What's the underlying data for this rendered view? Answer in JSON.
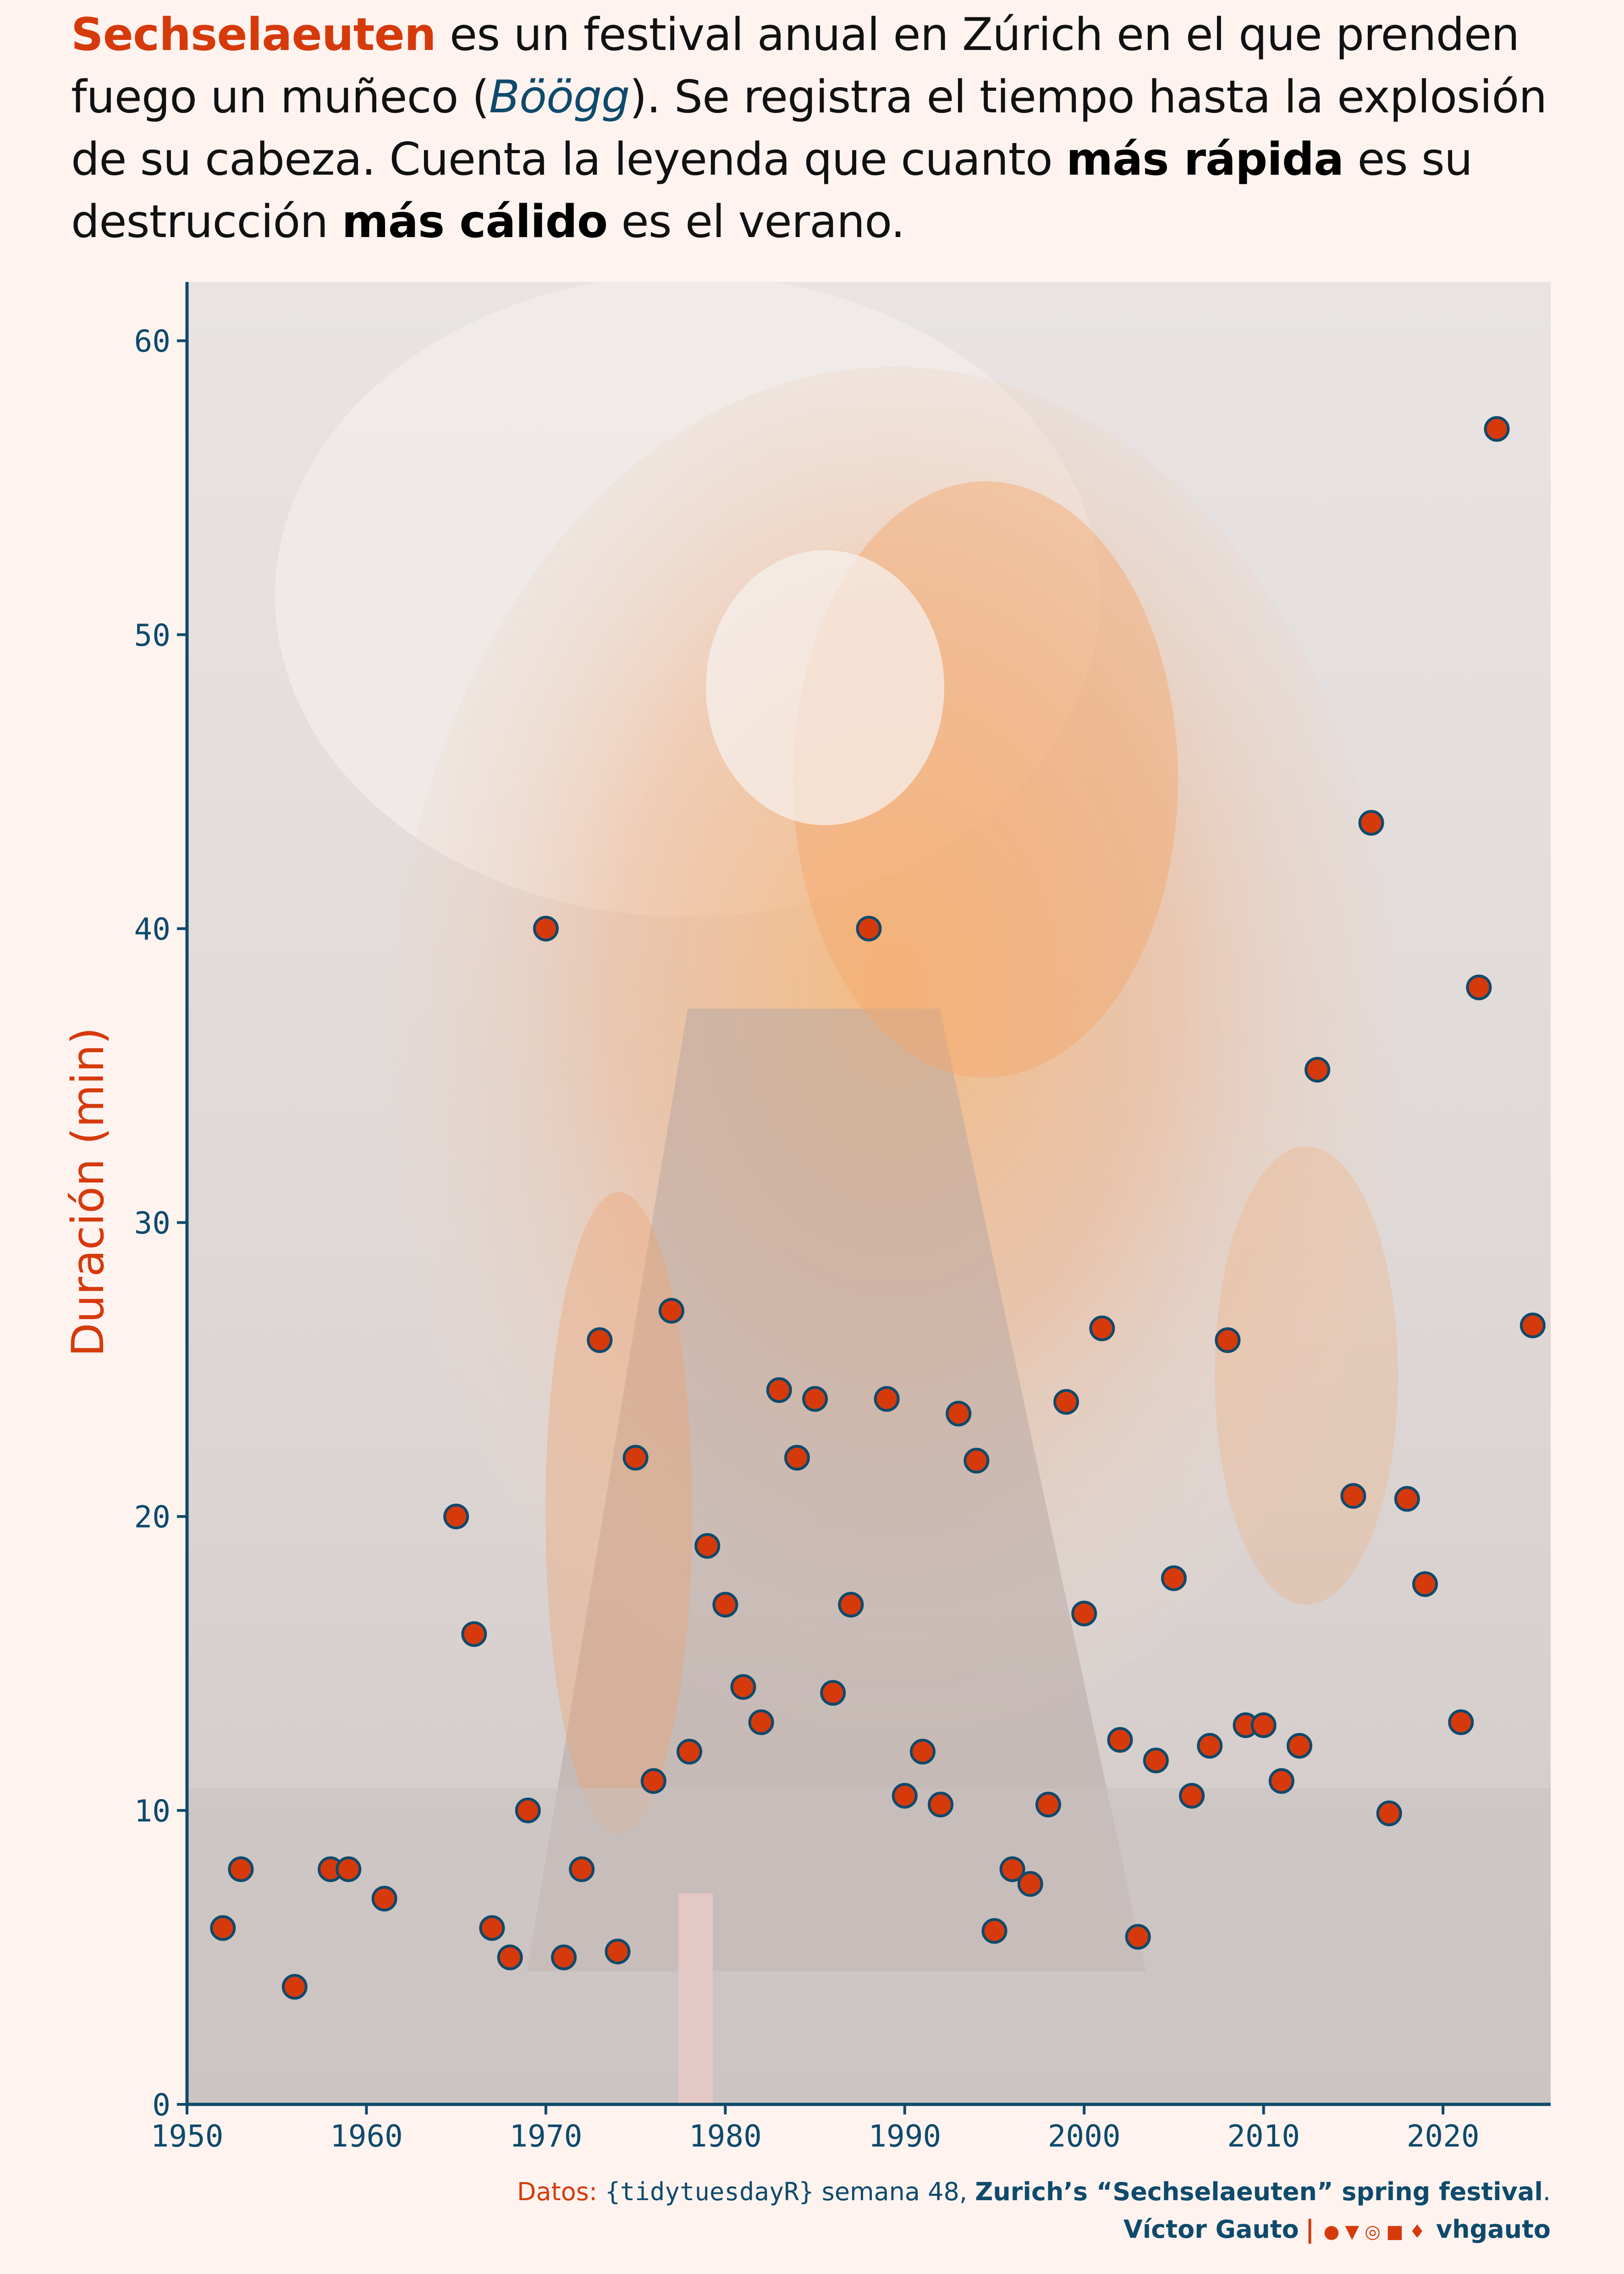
{
  "title": {
    "p1_highlight": "Sechselaeuten",
    "p2": " es un festival anual en Zúrich en el que prenden fuego un muñeco (",
    "p3_italic": "Böögg",
    "p4": "). Se registra el tiempo hasta la explosión de su cabeza. Cuenta la leyenda que cuanto ",
    "p5_bold": "más rápida",
    "p6": " es su destrucción ",
    "p7_bold": "más cálido",
    "p8": " es el verano."
  },
  "caption": {
    "label": "Datos:",
    "source": "{tidytuesdayR}",
    "week": "semana 48,",
    "dataset": "Zurich’s “Sechselaeuten” spring festival",
    "dot": ".",
    "author": "Víctor Gauto",
    "separator": "|",
    "icons": [
      "github-icon",
      "twitter-icon",
      "instagram-icon",
      "mastodon-icon",
      "bluesky-icon"
    ],
    "handle": "vhgauto"
  },
  "colors": {
    "background": "#fff3f0",
    "accent": "#d63a0b",
    "axis": "#0e4a6b",
    "point_fill": "#d63a0b",
    "point_stroke": "#0e4a6b"
  },
  "chart_data": {
    "type": "scatter",
    "title": "",
    "xlabel": "",
    "ylabel": "Duración (min)",
    "xlim": [
      1950,
      2026
    ],
    "ylim": [
      0,
      62
    ],
    "x_ticks": [
      1950,
      1960,
      1970,
      1980,
      1990,
      2000,
      2010,
      2020
    ],
    "y_ticks": [
      0,
      10,
      20,
      30,
      40,
      50,
      60
    ],
    "grid": false,
    "background_image": "burning-boogg-photo",
    "points": [
      {
        "x": 1952,
        "y": 6
      },
      {
        "x": 1953,
        "y": 8
      },
      {
        "x": 1956,
        "y": 4
      },
      {
        "x": 1958,
        "y": 8
      },
      {
        "x": 1959,
        "y": 8
      },
      {
        "x": 1961,
        "y": 7
      },
      {
        "x": 1965,
        "y": 20
      },
      {
        "x": 1966,
        "y": 16
      },
      {
        "x": 1967,
        "y": 6
      },
      {
        "x": 1968,
        "y": 5
      },
      {
        "x": 1969,
        "y": 10
      },
      {
        "x": 1970,
        "y": 40
      },
      {
        "x": 1971,
        "y": 5
      },
      {
        "x": 1972,
        "y": 8
      },
      {
        "x": 1973,
        "y": 26
      },
      {
        "x": 1974,
        "y": 5.2
      },
      {
        "x": 1975,
        "y": 22
      },
      {
        "x": 1976,
        "y": 11
      },
      {
        "x": 1977,
        "y": 27
      },
      {
        "x": 1978,
        "y": 12
      },
      {
        "x": 1979,
        "y": 19
      },
      {
        "x": 1980,
        "y": 17
      },
      {
        "x": 1981,
        "y": 14.2
      },
      {
        "x": 1982,
        "y": 13
      },
      {
        "x": 1983,
        "y": 24.3
      },
      {
        "x": 1984,
        "y": 22
      },
      {
        "x": 1985,
        "y": 24
      },
      {
        "x": 1986,
        "y": 14
      },
      {
        "x": 1987,
        "y": 17
      },
      {
        "x": 1988,
        "y": 40
      },
      {
        "x": 1989,
        "y": 24
      },
      {
        "x": 1990,
        "y": 10.5
      },
      {
        "x": 1991,
        "y": 12
      },
      {
        "x": 1992,
        "y": 10.2
      },
      {
        "x": 1993,
        "y": 23.5
      },
      {
        "x": 1994,
        "y": 21.9
      },
      {
        "x": 1995,
        "y": 5.9
      },
      {
        "x": 1996,
        "y": 8
      },
      {
        "x": 1997,
        "y": 7.5
      },
      {
        "x": 1998,
        "y": 10.2
      },
      {
        "x": 1999,
        "y": 23.9
      },
      {
        "x": 2000,
        "y": 16.7
      },
      {
        "x": 2001,
        "y": 26.4
      },
      {
        "x": 2002,
        "y": 12.4
      },
      {
        "x": 2003,
        "y": 5.7
      },
      {
        "x": 2004,
        "y": 11.7
      },
      {
        "x": 2005,
        "y": 17.9
      },
      {
        "x": 2006,
        "y": 10.5
      },
      {
        "x": 2007,
        "y": 12.2
      },
      {
        "x": 2008,
        "y": 26
      },
      {
        "x": 2009,
        "y": 12.9
      },
      {
        "x": 2010,
        "y": 12.9
      },
      {
        "x": 2011,
        "y": 11
      },
      {
        "x": 2012,
        "y": 12.2
      },
      {
        "x": 2013,
        "y": 35.2
      },
      {
        "x": 2015,
        "y": 20.7
      },
      {
        "x": 2016,
        "y": 43.6
      },
      {
        "x": 2017,
        "y": 9.9
      },
      {
        "x": 2018,
        "y": 20.6
      },
      {
        "x": 2019,
        "y": 17.7
      },
      {
        "x": 2021,
        "y": 13
      },
      {
        "x": 2022,
        "y": 38
      },
      {
        "x": 2023,
        "y": 57
      },
      {
        "x": 2025,
        "y": 26.5
      }
    ]
  }
}
